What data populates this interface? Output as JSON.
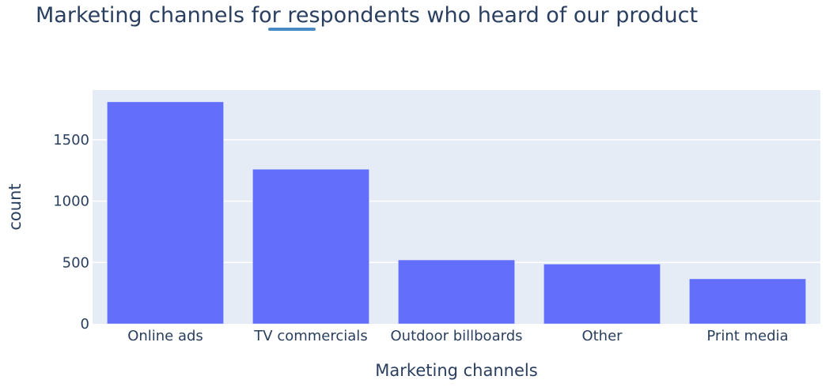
{
  "chart_data": {
    "type": "bar",
    "title": "Marketing channels for respondents who heard of our product",
    "xlabel": "Marketing channels",
    "ylabel": "count",
    "categories": [
      "Online ads",
      "TV commercials",
      "Outdoor billboards",
      "Other",
      "Print media"
    ],
    "values": [
      1809,
      1260,
      521,
      487,
      367
    ],
    "ylim": [
      0,
      1905
    ],
    "yticks": [
      0,
      500,
      1000,
      1500
    ],
    "grid": true,
    "colors": {
      "bar": "#636efa",
      "plot_bg": "#e5ecf6",
      "grid": "#ffffff",
      "highlight": "#4a8ac4"
    }
  }
}
